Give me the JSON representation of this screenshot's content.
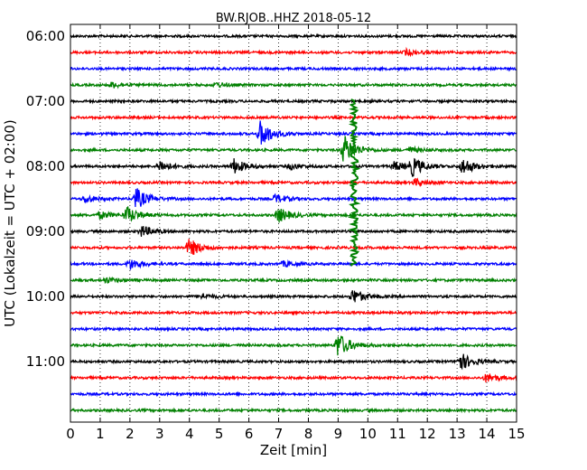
{
  "chart_data": {
    "type": "line",
    "title": "BW.RJOB..HHZ 2018-05-12",
    "xlabel": "Zeit  [min]",
    "ylabel": "UTC (Lokalzeit = UTC + 02:00)",
    "xlim": [
      0,
      15
    ],
    "x_ticks": [
      "0",
      "1",
      "2",
      "3",
      "4",
      "5",
      "6",
      "7",
      "8",
      "9",
      "10",
      "11",
      "12",
      "13",
      "14",
      "15"
    ],
    "y_ticks": [
      "06:00",
      "07:00",
      "08:00",
      "09:00",
      "10:00",
      "11:00"
    ],
    "grid": {
      "vertical": true,
      "style": "dotted"
    },
    "colors": [
      "#000000",
      "#ff0000",
      "#0000ff",
      "#008000"
    ],
    "trace_interval_min": 15,
    "start_time": "06:00",
    "traces": [
      {
        "start": "06:00",
        "color": "#000000",
        "events": []
      },
      {
        "start": "06:15",
        "color": "#ff0000",
        "events": [
          {
            "t": 11.3,
            "amp": 0.3
          }
        ]
      },
      {
        "start": "06:30",
        "color": "#0000ff",
        "events": []
      },
      {
        "start": "06:45",
        "color": "#008000",
        "events": [
          {
            "t": 1.4,
            "amp": 0.3
          },
          {
            "t": 4.9,
            "amp": 0.25
          }
        ]
      },
      {
        "start": "07:00",
        "color": "#000000",
        "events": []
      },
      {
        "start": "07:15",
        "color": "#ff0000",
        "events": []
      },
      {
        "start": "07:30",
        "color": "#0000ff",
        "events": [
          {
            "t": 6.4,
            "amp": 1.5
          }
        ]
      },
      {
        "start": "07:45",
        "color": "#008000",
        "events": [
          {
            "t": 9.2,
            "amp": 1.6
          },
          {
            "t": 11.4,
            "amp": 0.3
          }
        ]
      },
      {
        "start": "08:00",
        "color": "#000000",
        "events": [
          {
            "t": 3.0,
            "amp": 0.6
          },
          {
            "t": 5.5,
            "amp": 0.8
          },
          {
            "t": 7.4,
            "amp": 0.3
          },
          {
            "t": 10.9,
            "amp": 0.5
          },
          {
            "t": 11.5,
            "amp": 1.0
          },
          {
            "t": 13.2,
            "amp": 0.9
          }
        ]
      },
      {
        "start": "08:15",
        "color": "#ff0000",
        "events": [
          {
            "t": 11.6,
            "amp": 0.4
          }
        ]
      },
      {
        "start": "08:30",
        "color": "#0000ff",
        "events": [
          {
            "t": 0.5,
            "amp": 0.4
          },
          {
            "t": 2.2,
            "amp": 1.2
          },
          {
            "t": 6.9,
            "amp": 0.5
          }
        ]
      },
      {
        "start": "08:45",
        "color": "#008000",
        "events": [
          {
            "t": 1.0,
            "amp": 0.4
          },
          {
            "t": 1.9,
            "amp": 0.9
          },
          {
            "t": 7.0,
            "amp": 0.8
          }
        ]
      },
      {
        "start": "09:00",
        "color": "#000000",
        "events": [
          {
            "t": 2.4,
            "amp": 0.6
          }
        ]
      },
      {
        "start": "09:15",
        "color": "#ff0000",
        "events": [
          {
            "t": 4.0,
            "amp": 1.0
          }
        ]
      },
      {
        "start": "09:30",
        "color": "#0000ff",
        "events": [
          {
            "t": 2.0,
            "amp": 0.6
          },
          {
            "t": 7.2,
            "amp": 0.3
          }
        ]
      },
      {
        "start": "09:45",
        "color": "#008000",
        "events": [
          {
            "t": 1.2,
            "amp": 0.3
          }
        ]
      },
      {
        "start": "10:00",
        "color": "#000000",
        "events": [
          {
            "t": 4.4,
            "amp": 0.3
          },
          {
            "t": 9.5,
            "amp": 0.8
          }
        ]
      },
      {
        "start": "10:15",
        "color": "#ff0000",
        "events": []
      },
      {
        "start": "10:30",
        "color": "#0000ff",
        "events": []
      },
      {
        "start": "10:45",
        "color": "#008000",
        "events": [
          {
            "t": 9.0,
            "amp": 1.4
          }
        ]
      },
      {
        "start": "11:00",
        "color": "#000000",
        "events": [
          {
            "t": 13.1,
            "amp": 1.0
          }
        ]
      },
      {
        "start": "11:15",
        "color": "#ff0000",
        "events": [
          {
            "t": 14.0,
            "amp": 0.5
          }
        ]
      },
      {
        "start": "11:30",
        "color": "#0000ff",
        "events": []
      },
      {
        "start": "11:45",
        "color": "#008000",
        "events": []
      }
    ],
    "major_event": {
      "t": 9.55,
      "trace_from": "07:15",
      "trace_to": "09:15"
    }
  }
}
